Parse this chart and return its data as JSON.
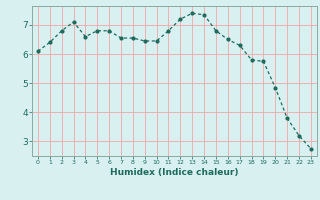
{
  "x": [
    0,
    1,
    2,
    3,
    4,
    5,
    6,
    7,
    8,
    9,
    10,
    11,
    12,
    13,
    14,
    15,
    16,
    17,
    18,
    19,
    20,
    21,
    22,
    23
  ],
  "y": [
    6.1,
    6.4,
    6.8,
    7.1,
    6.6,
    6.8,
    6.8,
    6.55,
    6.55,
    6.45,
    6.45,
    6.8,
    7.2,
    7.4,
    7.35,
    6.8,
    6.5,
    6.3,
    5.8,
    5.75,
    4.85,
    3.8,
    3.2,
    2.75
  ],
  "line_color": "#1e6b5e",
  "marker": "o",
  "marker_size": 2.0,
  "bg_color": "#d8f0f0",
  "grid_color": "#f0b0b0",
  "xlabel": "Humidex (Indice chaleur)",
  "yticks": [
    3,
    4,
    5,
    6,
    7
  ],
  "xticks": [
    0,
    1,
    2,
    3,
    4,
    5,
    6,
    7,
    8,
    9,
    10,
    11,
    12,
    13,
    14,
    15,
    16,
    17,
    18,
    19,
    20,
    21,
    22,
    23
  ],
  "ylim": [
    2.5,
    7.65
  ],
  "xlim": [
    -0.5,
    23.5
  ]
}
